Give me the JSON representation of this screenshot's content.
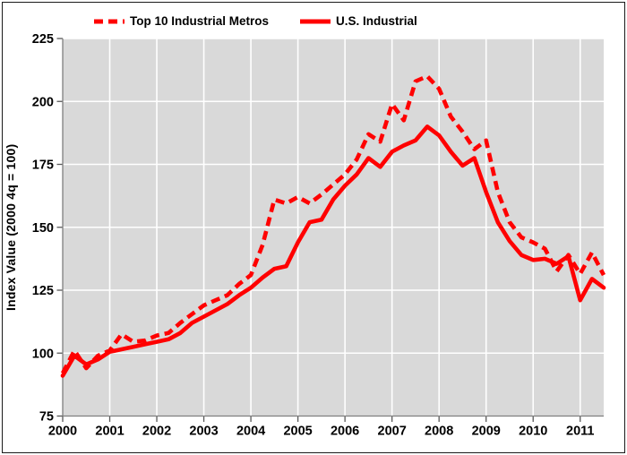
{
  "legend": {
    "items": [
      {
        "label": "Top 10 Industrial Metros",
        "style": "dashed"
      },
      {
        "label": "U.S. Industrial",
        "style": "solid"
      }
    ]
  },
  "chart_data": {
    "type": "line",
    "title": "",
    "xlabel": "",
    "ylabel": "Index Value (2000 4q = 100)",
    "ylim": [
      75,
      225
    ],
    "y_ticks": [
      75,
      100,
      125,
      150,
      175,
      200,
      225
    ],
    "x_ticks": [
      "2000",
      "2001",
      "2002",
      "2003",
      "2004",
      "2005",
      "2006",
      "2007",
      "2008",
      "2009",
      "2010",
      "2011"
    ],
    "quarters_per_year": 4,
    "grid": true,
    "legend_position": "top",
    "categories": [
      "2000 Q1",
      "2000 Q2",
      "2000 Q3",
      "2000 Q4",
      "2001 Q1",
      "2001 Q2",
      "2001 Q3",
      "2001 Q4",
      "2002 Q1",
      "2002 Q2",
      "2002 Q3",
      "2002 Q4",
      "2003 Q1",
      "2003 Q2",
      "2003 Q3",
      "2003 Q4",
      "2004 Q1",
      "2004 Q2",
      "2004 Q3",
      "2004 Q4",
      "2005 Q1",
      "2005 Q2",
      "2005 Q3",
      "2005 Q4",
      "2006 Q1",
      "2006 Q2",
      "2006 Q3",
      "2006 Q4",
      "2007 Q1",
      "2007 Q2",
      "2007 Q3",
      "2007 Q4",
      "2008 Q1",
      "2008 Q2",
      "2008 Q3",
      "2008 Q4",
      "2009 Q1",
      "2009 Q2",
      "2009 Q3",
      "2009 Q4",
      "2010 Q1",
      "2010 Q2",
      "2010 Q3",
      "2010 Q4",
      "2011 Q1",
      "2011 Q2",
      "2011 Q3"
    ],
    "series": [
      {
        "name": "Top 10 Industrial Metros",
        "dash": "dashed",
        "values": [
          92,
          101,
          94,
          99,
          101,
          107.5,
          104.5,
          105,
          107,
          108,
          112,
          115.5,
          119,
          121,
          123,
          127.5,
          131,
          143,
          161,
          159.5,
          162,
          159.5,
          163,
          167,
          171,
          177,
          187,
          184,
          199,
          192.5,
          208,
          210,
          205,
          194,
          188,
          181,
          184.5,
          164,
          152,
          146,
          144,
          141.5,
          132.5,
          139,
          131.5,
          140,
          131
        ]
      },
      {
        "name": "U.S. Industrial",
        "dash": "solid",
        "values": [
          91,
          99,
          95.5,
          97.5,
          100.5,
          101.5,
          102.5,
          103.5,
          104.5,
          105.5,
          108,
          112,
          114.5,
          117,
          119.5,
          123,
          126,
          130,
          133.5,
          134.5,
          144,
          152,
          153,
          161,
          166.5,
          171,
          177.5,
          174,
          180,
          182.5,
          184.5,
          190,
          186.5,
          180,
          174.5,
          177.5,
          164,
          152,
          144.5,
          139,
          137,
          137.5,
          135.5,
          138.5,
          121,
          129.5,
          126
        ]
      }
    ],
    "colors": {
      "line": "#FF0000",
      "plot_bg": "#D9D9D9",
      "gridline": "#FFFFFF",
      "axis": "#7F7F7F",
      "tick": "#595959",
      "text": "#000000"
    }
  }
}
